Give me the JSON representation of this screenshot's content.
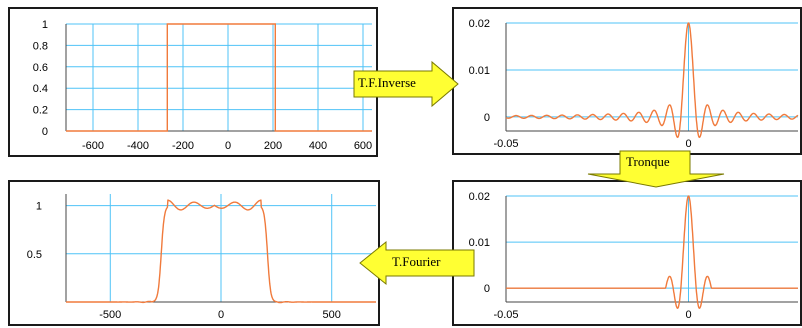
{
  "arrows": {
    "inverse_label": "T.F.Inverse",
    "tronque_label": "Tronque",
    "fourier_label": "T.Fourier"
  },
  "colors": {
    "grid": "#4fc3f7",
    "curve": "#f07a3c",
    "arrow_fill": "#ffff33",
    "arrow_stroke": "#7a7a00"
  },
  "chart_data": [
    {
      "type": "line",
      "title": "",
      "xlabel": "",
      "ylabel": "",
      "xlim": [
        -720,
        640
      ],
      "ylim": [
        0,
        1
      ],
      "xticks": [
        "-600",
        "-400",
        "-200",
        "0",
        "200",
        "400",
        "600"
      ],
      "xtick_values": [
        -600,
        -400,
        -200,
        0,
        200,
        400,
        600
      ],
      "yticks": [
        "0",
        "0.2",
        "0.4",
        "0.6",
        "0.8",
        "1"
      ],
      "ytick_values": [
        0,
        0.2,
        0.4,
        0.6,
        0.8,
        1
      ],
      "series": [
        {
          "shape": "rect",
          "x": [
            -720,
            -270,
            -270,
            210,
            210,
            640
          ],
          "y": [
            0,
            0,
            1,
            1,
            0,
            0
          ]
        }
      ]
    },
    {
      "type": "line",
      "title": "",
      "xlabel": "",
      "ylabel": "",
      "xlim": [
        -0.05,
        0.03
      ],
      "ylim": [
        -0.003,
        0.02
      ],
      "xticks": [
        "-0.05",
        "0"
      ],
      "xtick_values": [
        -0.05,
        0
      ],
      "yticks": [
        "0",
        "0.01",
        "0.02"
      ],
      "ytick_values": [
        0,
        0.01,
        0.02
      ],
      "series": [
        {
          "shape": "sinc",
          "peak": 0.02,
          "first_zero": 0.0021,
          "x_range": [
            -0.05,
            0.03
          ]
        }
      ]
    },
    {
      "type": "line",
      "title": "",
      "xlabel": "",
      "ylabel": "",
      "xlim": [
        -0.05,
        0.03
      ],
      "ylim": [
        -0.003,
        0.02
      ],
      "xticks": [
        "-0.05",
        "0"
      ],
      "xtick_values": [
        -0.05,
        0
      ],
      "yticks": [
        "0",
        "0.01",
        "0.02"
      ],
      "ytick_values": [
        0,
        0.01,
        0.02
      ],
      "series": [
        {
          "shape": "sinc-truncated",
          "peak": 0.02,
          "first_zero": 0.0021,
          "truncate_at": 0.0063
        }
      ]
    },
    {
      "type": "line",
      "title": "",
      "xlabel": "",
      "ylabel": "",
      "xlim": [
        -700,
        700
      ],
      "ylim": [
        0,
        1.12
      ],
      "xticks": [
        "-500",
        "0",
        "500"
      ],
      "xtick_values": [
        -500,
        0,
        500
      ],
      "yticks": [
        "0.5",
        "1"
      ],
      "ytick_values": [
        0.5,
        1
      ],
      "series": [
        {
          "shape": "rect-gibbs",
          "edges": [
            -270,
            210
          ],
          "level": 1,
          "ripple": 0.07
        }
      ]
    }
  ]
}
